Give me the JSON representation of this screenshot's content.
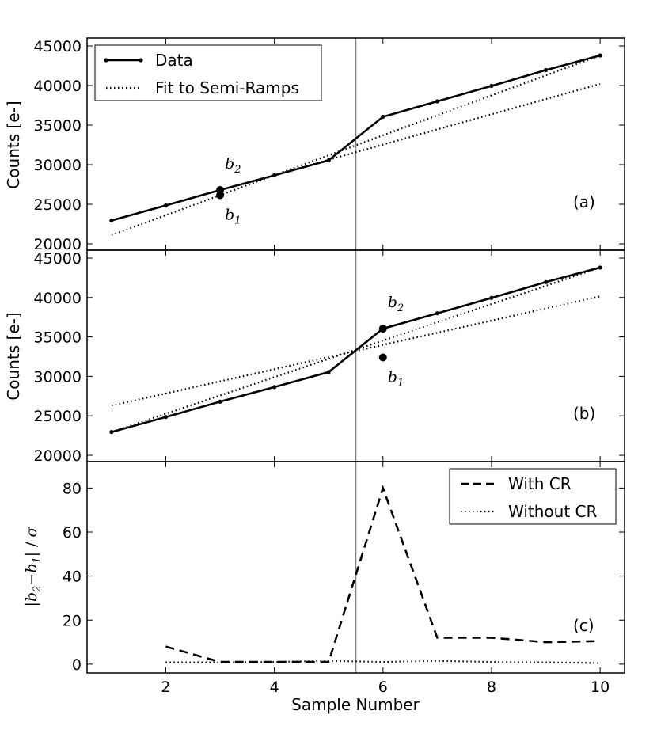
{
  "chart_data": [
    {
      "panel": "a",
      "type": "line",
      "panel_label": "(a)",
      "ylabel": "Counts [e-]",
      "xlim": [
        0.55,
        10.45
      ],
      "ylim": [
        19200,
        46000
      ],
      "yticks": [
        20000,
        25000,
        30000,
        35000,
        40000,
        45000
      ],
      "series": [
        {
          "name": "Data",
          "style": "solid-markers",
          "x": [
            1,
            2,
            3,
            4,
            5,
            6,
            7,
            8,
            9,
            10
          ],
          "y": [
            22950,
            24850,
            26800,
            28650,
            30550,
            36050,
            38000,
            39950,
            41950,
            43800
          ]
        },
        {
          "name": "Fit to Semi-Ramps",
          "style": "dotted",
          "x": [
            1,
            10
          ],
          "y": [
            21100,
            43800
          ]
        },
        {
          "name": "Fit to Semi-Ramps",
          "style": "dotted",
          "x": [
            1,
            10
          ],
          "y": [
            22950,
            40200
          ]
        }
      ],
      "points": [
        {
          "label": "b",
          "sub": "2",
          "x": 3,
          "y": 26800,
          "text_pos": "above"
        },
        {
          "label": "b",
          "sub": "1",
          "x": 3,
          "y": 26150,
          "text_pos": "below"
        }
      ],
      "legend": {
        "position": "top-left",
        "entries": [
          {
            "label": "Data",
            "style": "solid-markers"
          },
          {
            "label": "Fit to Semi-Ramps",
            "style": "dotted"
          }
        ]
      }
    },
    {
      "panel": "b",
      "type": "line",
      "panel_label": "(b)",
      "ylabel": "Counts [e-]",
      "xlim": [
        0.55,
        10.45
      ],
      "ylim": [
        19200,
        46000
      ],
      "yticks": [
        20000,
        25000,
        30000,
        35000,
        40000,
        45000
      ],
      "series": [
        {
          "name": "Data",
          "style": "solid-markers",
          "x": [
            1,
            2,
            3,
            4,
            5,
            6,
            7,
            8,
            9,
            10
          ],
          "y": [
            22950,
            24850,
            26800,
            28650,
            30550,
            36050,
            38000,
            39950,
            41950,
            43800
          ]
        },
        {
          "name": "Fit to Semi-Ramps",
          "style": "dotted",
          "x": [
            1,
            10
          ],
          "y": [
            22950,
            43800
          ]
        },
        {
          "name": "Fit to Semi-Ramps",
          "style": "dotted",
          "x": [
            1,
            10
          ],
          "y": [
            26300,
            40150
          ]
        }
      ],
      "points": [
        {
          "label": "b",
          "sub": "2",
          "x": 6,
          "y": 36050,
          "text_pos": "above"
        },
        {
          "label": "b",
          "sub": "1",
          "x": 6,
          "y": 32400,
          "text_pos": "below"
        }
      ]
    },
    {
      "panel": "c",
      "type": "line",
      "panel_label": "(c)",
      "ylabel": "|b2 - b1| / σ",
      "xlabel": "Sample Number",
      "xlim": [
        0.55,
        10.45
      ],
      "ylim": [
        -4,
        92
      ],
      "yticks": [
        0,
        20,
        40,
        60,
        80
      ],
      "xticks": [
        2,
        4,
        6,
        8,
        10
      ],
      "series": [
        {
          "name": "With CR",
          "style": "dashed",
          "x": [
            2,
            3,
            4,
            5,
            6,
            7,
            8,
            9,
            10
          ],
          "y": [
            8,
            1,
            1,
            1,
            80,
            12,
            12,
            10,
            10.5
          ]
        },
        {
          "name": "Without CR",
          "style": "dotted",
          "x": [
            2,
            3,
            4,
            5,
            6,
            7,
            8,
            9,
            10
          ],
          "y": [
            0.8,
            0.8,
            1,
            1.5,
            1,
            1.5,
            1,
            0.8,
            0.5
          ]
        }
      ],
      "legend": {
        "position": "top-right",
        "entries": [
          {
            "label": "With CR",
            "style": "dashed"
          },
          {
            "label": "Without CR",
            "style": "dotted"
          }
        ]
      }
    }
  ],
  "vertical_line_x": 5.5,
  "colors": {
    "line": "#000000",
    "vline": "#808080",
    "background": "#ffffff"
  }
}
